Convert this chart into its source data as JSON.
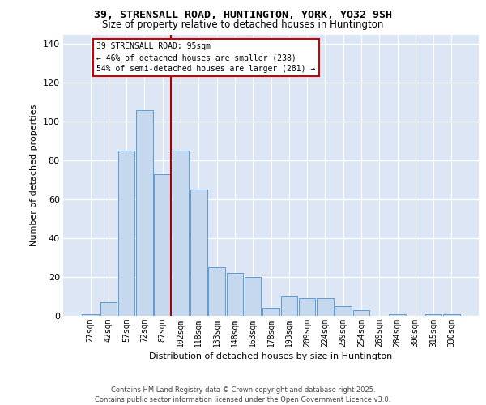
{
  "title_line1": "39, STRENSALL ROAD, HUNTINGTON, YORK, YO32 9SH",
  "title_line2": "Size of property relative to detached houses in Huntington",
  "xlabel": "Distribution of detached houses by size in Huntington",
  "ylabel": "Number of detached properties",
  "categories": [
    "27sqm",
    "42sqm",
    "57sqm",
    "72sqm",
    "87sqm",
    "102sqm",
    "118sqm",
    "133sqm",
    "148sqm",
    "163sqm",
    "178sqm",
    "193sqm",
    "209sqm",
    "224sqm",
    "239sqm",
    "254sqm",
    "269sqm",
    "284sqm",
    "300sqm",
    "315sqm",
    "330sqm"
  ],
  "values": [
    1,
    7,
    85,
    106,
    73,
    85,
    65,
    25,
    22,
    20,
    4,
    10,
    9,
    9,
    5,
    3,
    0,
    1,
    0,
    1,
    1
  ],
  "bar_color": "#c5d8ed",
  "bar_edge_color": "#5b9bd5",
  "background_color": "#dce6f5",
  "grid_color": "#ffffff",
  "annotation_line1": "39 STRENSALL ROAD: 95sqm",
  "annotation_line2": "← 46% of detached houses are smaller (238)",
  "annotation_line3": "54% of semi-detached houses are larger (281) →",
  "annotation_box_color": "#ffffff",
  "annotation_box_edge": "#cc0000",
  "vline_color": "#aa0000",
  "vline_x": 4.47,
  "ylim": [
    0,
    145
  ],
  "yticks": [
    0,
    20,
    40,
    60,
    80,
    100,
    120,
    140
  ],
  "footer_line1": "Contains HM Land Registry data © Crown copyright and database right 2025.",
  "footer_line2": "Contains public sector information licensed under the Open Government Licence v3.0."
}
